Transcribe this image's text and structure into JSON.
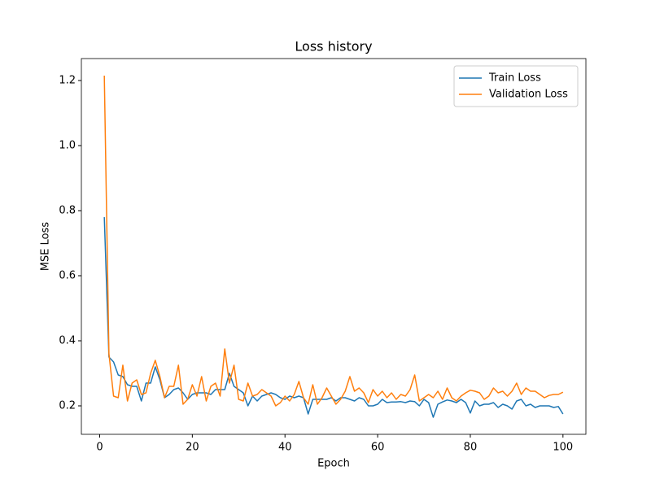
{
  "chart_data": {
    "type": "line",
    "title": "Loss history",
    "x_label": "Epoch",
    "y_label": "MSE Loss",
    "x": [
      1,
      2,
      3,
      4,
      5,
      6,
      7,
      8,
      9,
      10,
      11,
      12,
      13,
      14,
      15,
      16,
      17,
      18,
      19,
      20,
      21,
      22,
      23,
      24,
      25,
      26,
      27,
      28,
      29,
      30,
      31,
      32,
      33,
      34,
      35,
      36,
      37,
      38,
      39,
      40,
      41,
      42,
      43,
      44,
      45,
      46,
      47,
      48,
      49,
      50,
      51,
      52,
      53,
      54,
      55,
      56,
      57,
      58,
      59,
      60,
      61,
      62,
      63,
      64,
      65,
      66,
      67,
      68,
      69,
      70,
      71,
      72,
      73,
      74,
      75,
      76,
      77,
      78,
      79,
      80,
      81,
      82,
      83,
      84,
      85,
      86,
      87,
      88,
      89,
      90,
      91,
      92,
      93,
      94,
      95,
      96,
      97,
      98,
      99,
      100
    ],
    "series": [
      {
        "name": "Train Loss",
        "color": "#1f77b4",
        "values": [
          0.78,
          0.35,
          0.335,
          0.295,
          0.29,
          0.265,
          0.26,
          0.26,
          0.215,
          0.27,
          0.27,
          0.32,
          0.28,
          0.225,
          0.235,
          0.25,
          0.255,
          0.24,
          0.22,
          0.235,
          0.24,
          0.24,
          0.24,
          0.235,
          0.25,
          0.25,
          0.25,
          0.3,
          0.26,
          0.25,
          0.24,
          0.2,
          0.23,
          0.215,
          0.23,
          0.235,
          0.24,
          0.235,
          0.225,
          0.22,
          0.23,
          0.225,
          0.23,
          0.225,
          0.175,
          0.22,
          0.22,
          0.22,
          0.22,
          0.225,
          0.215,
          0.225,
          0.225,
          0.22,
          0.215,
          0.225,
          0.22,
          0.2,
          0.2,
          0.205,
          0.22,
          0.21,
          0.212,
          0.212,
          0.213,
          0.21,
          0.215,
          0.213,
          0.2,
          0.22,
          0.21,
          0.165,
          0.205,
          0.212,
          0.218,
          0.215,
          0.21,
          0.22,
          0.21,
          0.178,
          0.215,
          0.2,
          0.205,
          0.205,
          0.21,
          0.195,
          0.205,
          0.2,
          0.19,
          0.215,
          0.22,
          0.2,
          0.205,
          0.195,
          0.2,
          0.2,
          0.2,
          0.195,
          0.198,
          0.175
        ]
      },
      {
        "name": "Validation Loss",
        "color": "#ff7f0e",
        "values": [
          1.215,
          0.36,
          0.23,
          0.225,
          0.325,
          0.215,
          0.27,
          0.28,
          0.235,
          0.24,
          0.3,
          0.34,
          0.29,
          0.225,
          0.26,
          0.26,
          0.325,
          0.205,
          0.22,
          0.265,
          0.23,
          0.29,
          0.215,
          0.26,
          0.27,
          0.23,
          0.375,
          0.27,
          0.325,
          0.22,
          0.215,
          0.27,
          0.23,
          0.235,
          0.25,
          0.24,
          0.23,
          0.2,
          0.21,
          0.23,
          0.215,
          0.235,
          0.275,
          0.225,
          0.205,
          0.265,
          0.205,
          0.225,
          0.255,
          0.23,
          0.205,
          0.22,
          0.245,
          0.29,
          0.245,
          0.255,
          0.24,
          0.21,
          0.25,
          0.23,
          0.245,
          0.225,
          0.24,
          0.22,
          0.235,
          0.23,
          0.25,
          0.295,
          0.215,
          0.225,
          0.235,
          0.225,
          0.245,
          0.22,
          0.255,
          0.225,
          0.215,
          0.23,
          0.24,
          0.248,
          0.245,
          0.24,
          0.22,
          0.23,
          0.255,
          0.24,
          0.245,
          0.23,
          0.245,
          0.27,
          0.235,
          0.255,
          0.245,
          0.245,
          0.235,
          0.225,
          0.232,
          0.235,
          0.235,
          0.242
        ]
      }
    ],
    "xlim": [
      -3.95,
      104.95
    ],
    "ylim": [
      0.1125,
      1.2675
    ],
    "xticks": [
      0,
      20,
      40,
      60,
      80,
      100
    ],
    "yticks": [
      0.2,
      0.4,
      0.6,
      0.8,
      {
        "value": 1,
        "label": "1.0"
      },
      1.2
    ],
    "legend": "upper right"
  }
}
